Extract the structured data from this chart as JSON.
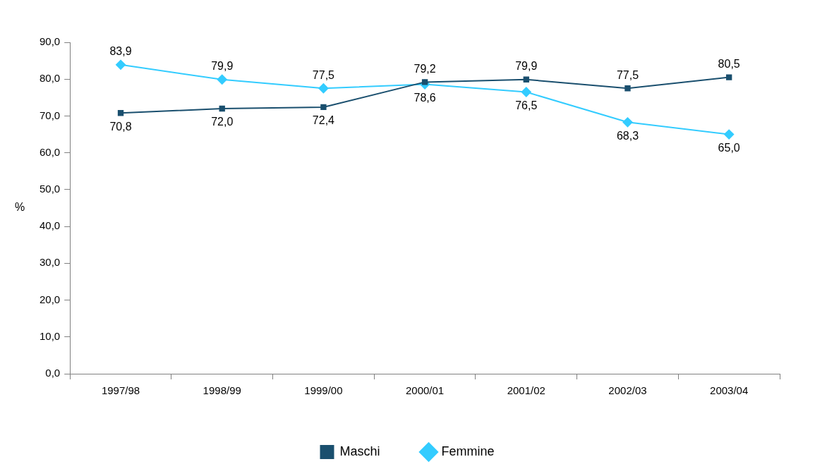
{
  "chart_data": {
    "type": "line",
    "ylabel": "%",
    "categories": [
      "1997/98",
      "1998/99",
      "1999/00",
      "2000/01",
      "2001/02",
      "2002/03",
      "2003/04"
    ],
    "series": [
      {
        "name": "Maschi",
        "color": "#1a4f6e",
        "marker": "square",
        "values": [
          70.8,
          72.0,
          72.4,
          79.2,
          79.9,
          77.5,
          80.5
        ],
        "value_labels": [
          "70,8",
          "72,0",
          "72,4",
          "79,2",
          "79,9",
          "77,5",
          "80,5"
        ]
      },
      {
        "name": "Femmine",
        "color": "#33ccff",
        "marker": "diamond",
        "values": [
          83.9,
          79.9,
          77.5,
          78.6,
          76.5,
          68.3,
          65.0
        ],
        "value_labels": [
          "83,9",
          "79,9",
          "77,5",
          "78,6",
          "76,5",
          "68,3",
          "65,0"
        ]
      }
    ],
    "ylim": [
      0,
      90
    ],
    "yticks": [
      {
        "value": 0,
        "label": "0,0"
      },
      {
        "value": 10,
        "label": "10,0"
      },
      {
        "value": 20,
        "label": "20,0"
      },
      {
        "value": 30,
        "label": "30,0"
      },
      {
        "value": 40,
        "label": "40,0"
      },
      {
        "value": 50,
        "label": "50,0"
      },
      {
        "value": 60,
        "label": "60,0"
      },
      {
        "value": 70,
        "label": "70,0"
      },
      {
        "value": 80,
        "label": "80,0"
      },
      {
        "value": 90,
        "label": "90,0"
      }
    ],
    "grid": false,
    "legend": "bottom",
    "line_style": "solid"
  }
}
